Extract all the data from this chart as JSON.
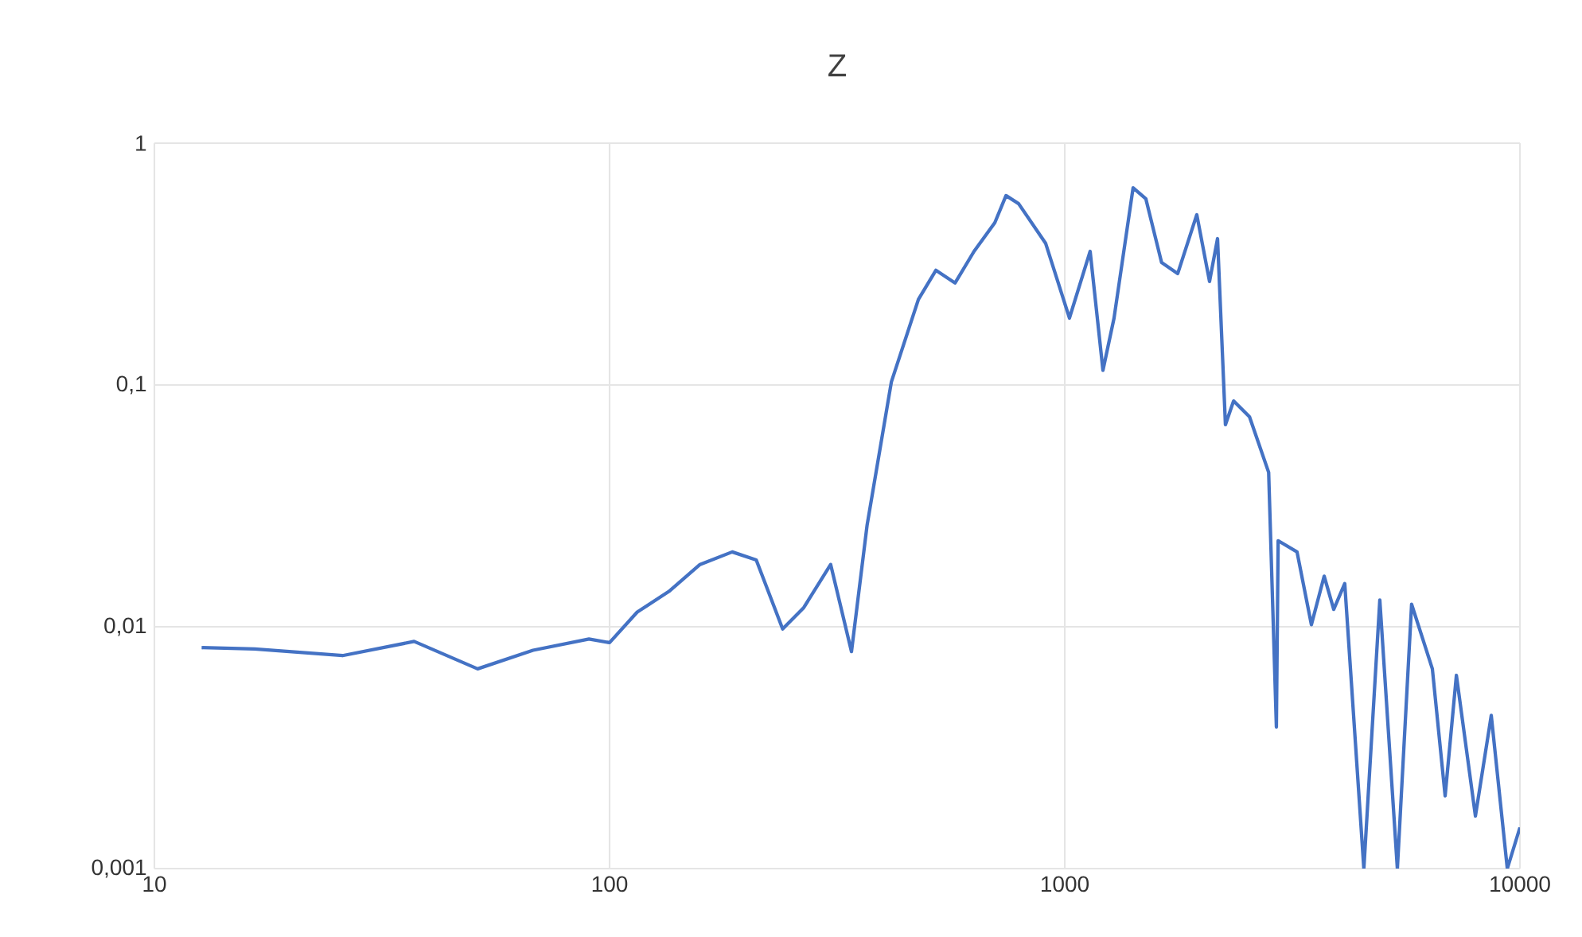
{
  "chart_data": {
    "type": "line",
    "title": "Z",
    "log": "xy",
    "grid": true,
    "xlim": [
      10,
      10000
    ],
    "ylim": [
      0.001,
      1
    ],
    "xticks": [
      10,
      100,
      1000,
      10000
    ],
    "yticks": [
      {
        "value": 0.001,
        "label": "0,001"
      },
      {
        "value": 0.01,
        "label": "0,01"
      },
      {
        "value": 0.1,
        "label": "0,1"
      },
      {
        "value": 1,
        "label": "1"
      }
    ],
    "series": [
      {
        "color": "#4472c4",
        "x": [
          12.7,
          16.6,
          25.9,
          37.2,
          51.3,
          67.9,
          90.1,
          100,
          115,
          135,
          158,
          186,
          210,
          240,
          267,
          306,
          340,
          368,
          416,
          477,
          521,
          574,
          632,
          702,
          743,
          792,
          908,
          1024,
          1137,
          1213,
          1283,
          1413,
          1507,
          1632,
          1771,
          1950,
          2080,
          2166,
          2254,
          2349,
          2546,
          2805,
          2917,
          2943,
          3238,
          3482,
          3715,
          3899,
          4122,
          4540,
          4922,
          5379,
          5781,
          6421,
          6850,
          7251,
          7984,
          8650,
          9380,
          10000
        ],
        "values": [
          0.0082,
          0.0081,
          0.0076,
          0.0087,
          0.0067,
          0.008,
          0.0089,
          0.0086,
          0.0115,
          0.014,
          0.0181,
          0.0204,
          0.0189,
          0.0098,
          0.012,
          0.0181,
          0.0079,
          0.0264,
          0.103,
          0.226,
          0.298,
          0.264,
          0.357,
          0.469,
          0.607,
          0.562,
          0.385,
          0.189,
          0.357,
          0.115,
          0.189,
          0.654,
          0.589,
          0.321,
          0.289,
          0.506,
          0.268,
          0.403,
          0.0685,
          0.0859,
          0.0739,
          0.0435,
          0.00385,
          0.0227,
          0.0204,
          0.0102,
          0.0162,
          0.0118,
          0.0151,
          0.001,
          0.0129,
          0.001,
          0.0124,
          0.0067,
          0.002,
          0.0063,
          0.00165,
          0.0043,
          0.001,
          0.00148
        ]
      }
    ]
  }
}
